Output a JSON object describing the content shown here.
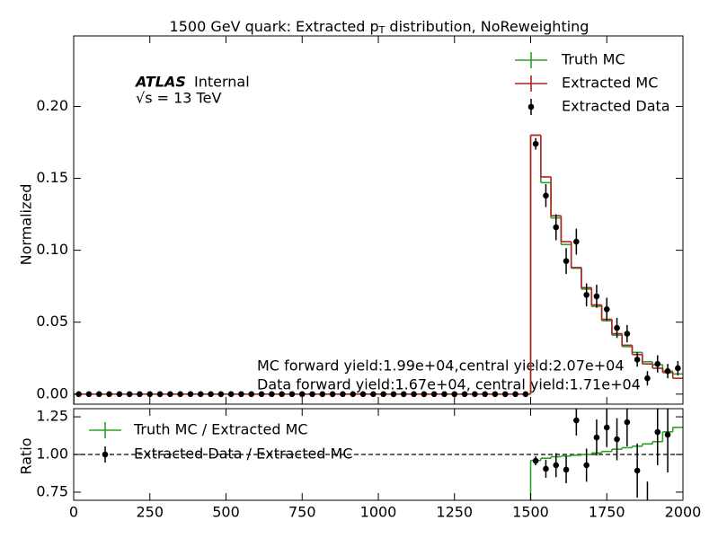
{
  "chart_data": [
    {
      "type": "step_histogram",
      "title": [
        "1500 GeV quark: Extracted p",
        "T",
        " distribution, NoReweighting"
      ],
      "ylabel": "Normalized",
      "atlas_label": "ATLAS",
      "atlas_status": "Internal",
      "energy_label": "√s =  13 TeV",
      "annotations": [
        "MC forward yield:1.99e+04,central yield:2.07e+04",
        "Data forward yield:1.67e+04, central yield:1.71e+04"
      ],
      "xlim": [
        0,
        2000
      ],
      "ylim": [
        -0.007,
        0.249
      ],
      "yticks": [
        {
          "value": 0,
          "label": "0.00"
        },
        {
          "value": 0.05,
          "label": "0.05"
        },
        {
          "value": 0.1,
          "label": "0.10"
        },
        {
          "value": 0.15,
          "label": "0.15"
        },
        {
          "value": 0.2,
          "label": "0.20"
        }
      ],
      "bins": [
        0,
        33.33,
        66.67,
        100,
        133.33,
        166.67,
        200,
        233.33,
        266.67,
        300,
        333.33,
        366.67,
        400,
        433.33,
        466.67,
        500,
        533.33,
        566.67,
        600,
        633.33,
        666.67,
        700,
        733.33,
        766.67,
        800,
        833.33,
        866.67,
        900,
        933.33,
        966.67,
        1000,
        1033.33,
        1066.67,
        1100,
        1133.33,
        1166.67,
        1200,
        1233.33,
        1266.67,
        1300,
        1333.33,
        1366.67,
        1400,
        1433.33,
        1466.67,
        1500,
        1533.33,
        1566.67,
        1600,
        1633.33,
        1666.67,
        1700,
        1733.33,
        1766.67,
        1800,
        1833.33,
        1866.67,
        1900,
        1933.33,
        1966.67,
        2000
      ],
      "series": [
        {
          "name": "Truth MC",
          "color": "#2ca02c",
          "style": "step",
          "values": [
            0,
            0,
            0,
            0,
            0,
            0,
            0,
            0,
            0,
            0,
            0,
            0,
            0,
            0,
            0,
            0,
            0,
            0,
            0,
            0,
            0,
            0,
            0,
            0,
            0,
            0,
            0,
            0,
            0,
            0,
            0,
            0,
            0,
            0,
            0,
            0,
            0,
            0,
            0,
            0,
            0,
            0,
            0,
            0,
            0,
            0.18,
            0.147,
            0.1225,
            0.104,
            0.0875,
            0.073,
            0.061,
            0.051,
            0.041,
            0.033,
            0.029,
            0.0225,
            0.0205,
            0.016,
            0.014
          ]
        },
        {
          "name": "Extracted MC",
          "color": "#b22222",
          "style": "step",
          "values": [
            0,
            0,
            0,
            0,
            0,
            0,
            0,
            0,
            0,
            0,
            0,
            0,
            0,
            0,
            0,
            0,
            0,
            0,
            0,
            0,
            0,
            0,
            0,
            0,
            0,
            0,
            0,
            0,
            0,
            0,
            0,
            0,
            0,
            0,
            0,
            0,
            0,
            0,
            0,
            0,
            0,
            0,
            0,
            0,
            0,
            0.18,
            0.151,
            0.124,
            0.106,
            0.088,
            0.074,
            0.062,
            0.052,
            0.042,
            0.034,
            0.0275,
            0.021,
            0.018,
            0.015,
            0.011
          ]
        },
        {
          "name": "Extracted Data",
          "color": "#000000",
          "style": "errorbar",
          "values": [
            0,
            0,
            0,
            0,
            0,
            0,
            0,
            0,
            0,
            0,
            0,
            0,
            0,
            0,
            0,
            0,
            0,
            0,
            0,
            0,
            0,
            0,
            0,
            0,
            0,
            0,
            0,
            0,
            0,
            0,
            0,
            0,
            0,
            0,
            0,
            0,
            0,
            0,
            0,
            0,
            0,
            0,
            0,
            0,
            0,
            0.174,
            0.138,
            0.116,
            0.0925,
            0.106,
            0.069,
            0.068,
            0.059,
            0.046,
            0.042,
            0.024,
            0.011,
            0.021,
            0.016,
            0.018
          ],
          "errors": [
            0,
            0,
            0,
            0,
            0,
            0,
            0,
            0,
            0,
            0,
            0,
            0,
            0,
            0,
            0,
            0,
            0,
            0,
            0,
            0,
            0,
            0,
            0,
            0,
            0,
            0,
            0,
            0,
            0,
            0,
            0,
            0,
            0,
            0,
            0,
            0,
            0,
            0,
            0,
            0,
            0,
            0,
            0,
            0,
            0,
            0.004,
            0.008,
            0.009,
            0.009,
            0.009,
            0.008,
            0.008,
            0.008,
            0.007,
            0.006,
            0.005,
            0.005,
            0.006,
            0.005,
            0.005
          ]
        }
      ]
    },
    {
      "type": "step_histogram",
      "ylabel": "Ratio",
      "xlim": [
        0,
        2000
      ],
      "xticks": [
        0,
        250,
        500,
        750,
        1000,
        1250,
        1500,
        1750,
        2000
      ],
      "ylim": [
        0.696,
        1.304
      ],
      "yticks": [
        0.75,
        {
          "value": 1,
          "label": "1.00"
        },
        1.25
      ],
      "hline": 1,
      "series": [
        {
          "name": "Truth MC / Extracted MC",
          "color": "#2ca02c",
          "style": "step",
          "values": [
            null,
            null,
            null,
            null,
            null,
            null,
            null,
            null,
            null,
            null,
            null,
            null,
            null,
            null,
            null,
            null,
            null,
            null,
            null,
            null,
            null,
            null,
            null,
            null,
            null,
            null,
            null,
            null,
            null,
            null,
            null,
            null,
            null,
            null,
            null,
            null,
            null,
            null,
            null,
            null,
            null,
            null,
            null,
            null,
            null,
            0.96,
            0.975,
            0.985,
            0.99,
            0.995,
            1.0,
            1.01,
            1.02,
            1.035,
            1.045,
            1.055,
            1.07,
            1.085,
            1.15,
            1.18
          ]
        },
        {
          "name": "Extracted Data / Extracted MC",
          "color": "#000000",
          "style": "errorbar",
          "values": [
            null,
            null,
            null,
            null,
            null,
            null,
            null,
            null,
            null,
            null,
            null,
            null,
            null,
            null,
            null,
            null,
            null,
            null,
            null,
            null,
            null,
            null,
            null,
            null,
            null,
            null,
            null,
            null,
            null,
            null,
            null,
            null,
            null,
            null,
            null,
            null,
            null,
            null,
            null,
            null,
            null,
            null,
            null,
            null,
            null,
            0.958,
            0.905,
            0.929,
            0.899,
            1.226,
            0.929,
            1.113,
            1.179,
            1.101,
            1.214,
            0.893,
            0.62,
            1.149,
            1.131,
            null
          ],
          "errors": [
            null,
            null,
            null,
            null,
            null,
            null,
            null,
            null,
            null,
            null,
            null,
            null,
            null,
            null,
            null,
            null,
            null,
            null,
            null,
            null,
            null,
            null,
            null,
            null,
            null,
            null,
            null,
            null,
            null,
            null,
            null,
            null,
            null,
            null,
            null,
            null,
            null,
            null,
            null,
            null,
            null,
            null,
            null,
            null,
            null,
            0.03,
            0.06,
            0.08,
            0.09,
            0.1,
            0.11,
            0.12,
            0.13,
            0.14,
            0.16,
            0.18,
            0.2,
            0.22,
            0.25,
            null
          ]
        }
      ]
    }
  ]
}
